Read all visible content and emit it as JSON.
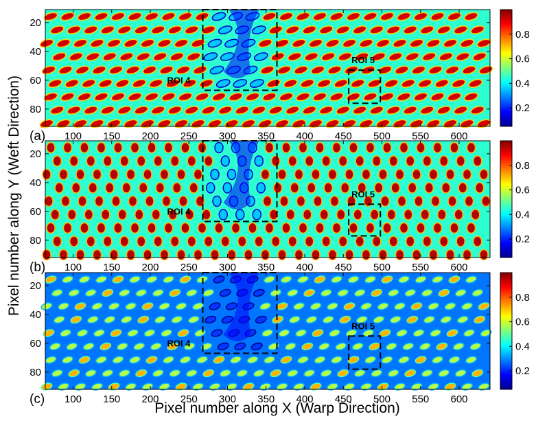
{
  "chart_data": [
    {
      "type": "heatmap",
      "panel_label": "(a)",
      "pattern": "weave-bright",
      "xlim": [
        64,
        640
      ],
      "ylim": [
        92,
        11
      ],
      "x_ticks": [
        100,
        150,
        200,
        250,
        300,
        350,
        400,
        450,
        500,
        550,
        600
      ],
      "y_ticks": [
        20,
        40,
        60,
        80
      ],
      "colorbar_ticks": [
        0.2,
        0.4,
        0.6,
        0.8
      ],
      "clim": [
        0.05,
        1.0
      ],
      "colormap": "jet",
      "rois": [
        {
          "label": "ROI 4",
          "x": [
            268,
            364
          ],
          "y": [
            11,
            67
          ]
        },
        {
          "label": "ROI 5",
          "x": [
            457,
            498
          ],
          "y": [
            53,
            76
          ]
        }
      ]
    },
    {
      "type": "heatmap",
      "panel_label": "(b)",
      "pattern": "weave-vertical",
      "xlim": [
        64,
        640
      ],
      "ylim": [
        92,
        11
      ],
      "x_ticks": [
        100,
        150,
        200,
        250,
        300,
        350,
        400,
        450,
        500,
        550,
        600
      ],
      "y_ticks": [
        20,
        40,
        60,
        80
      ],
      "colorbar_ticks": [
        0.2,
        0.4,
        0.6,
        0.8
      ],
      "clim": [
        0.05,
        1.0
      ],
      "colormap": "jet",
      "rois": [
        {
          "label": "ROI 4",
          "x": [
            268,
            364
          ],
          "y": [
            11,
            67
          ]
        },
        {
          "label": "ROI 5",
          "x": [
            457,
            498
          ],
          "y": [
            55,
            77
          ]
        }
      ]
    },
    {
      "type": "heatmap",
      "panel_label": "(c)",
      "pattern": "weave-dark",
      "xlim": [
        64,
        640
      ],
      "ylim": [
        92,
        11
      ],
      "x_ticks": [
        100,
        150,
        200,
        250,
        300,
        350,
        400,
        450,
        500,
        550,
        600
      ],
      "y_ticks": [
        20,
        40,
        60,
        80
      ],
      "colorbar_ticks": [
        0.2,
        0.4,
        0.6,
        0.8
      ],
      "clim": [
        0.05,
        1.0
      ],
      "colormap": "jet",
      "rois": [
        {
          "label": "ROI 4",
          "x": [
            268,
            364
          ],
          "y": [
            11,
            67
          ]
        },
        {
          "label": "ROI 5",
          "x": [
            457,
            498
          ],
          "y": [
            55,
            78
          ]
        }
      ]
    }
  ],
  "ylabel": "Pixel number along Y (Weft Direction)",
  "xlabel": "Pixel number along X (Warp Direction)"
}
